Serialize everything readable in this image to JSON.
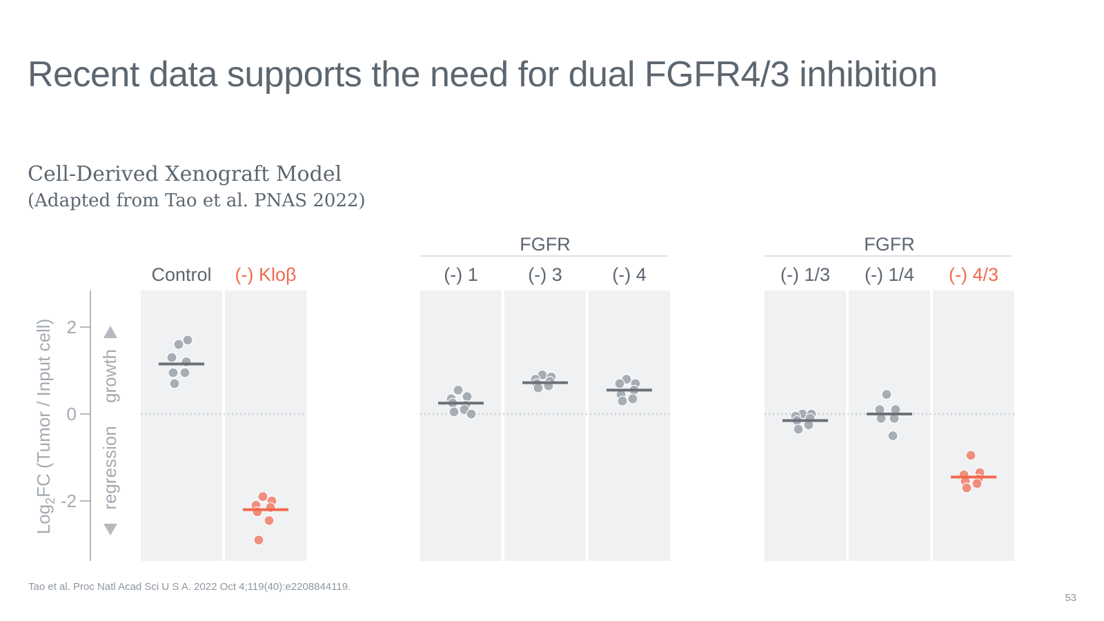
{
  "slide": {
    "title": "Recent data supports the need for dual FGFR4/3 inhibition",
    "subtitle_line1": "Cell-Derived Xenograft Model",
    "subtitle_line2": "(Adapted from Tao et al. PNAS 2022)",
    "footnote": "Tao et al. Proc Natl Acad Sci U S A. 2022 Oct 4;119(40):e2208844119.",
    "page_number": "53"
  },
  "chart_data": {
    "type": "scatter",
    "ylabel": "Log2FC (Tumor / Input cell)",
    "ylabel_parts": {
      "before_sub": "Log",
      "sub": "2",
      "after_sub": "FC (Tumor / Input cell)"
    },
    "direction_labels": {
      "up": "growth",
      "down": "regression"
    },
    "yticks": [
      2,
      0,
      -2
    ],
    "ytick_labels": [
      "2",
      "0",
      "-2"
    ],
    "ylim": [
      -3.3,
      2.9
    ],
    "reference_line_y": 0,
    "colors": {
      "gray_point": "#a3aab2",
      "gray_median": "#6b7178",
      "red_point": "#ef8a78",
      "red_median": "#f06a4e",
      "panel_bg": "#f0f1f2",
      "text_gray": "#5c6670",
      "text_red": "#f06a4e"
    },
    "groups": [
      {
        "header": "",
        "conditions": [
          {
            "label": "Control",
            "highlight": false,
            "median": 1.15,
            "values": [
              1.6,
              1.7,
              1.3,
              1.2,
              0.95,
              0.95,
              0.7
            ]
          },
          {
            "label": "(-) Kloβ",
            "highlight": true,
            "median": -2.2,
            "values": [
              -1.9,
              -2.0,
              -2.1,
              -2.15,
              -2.25,
              -2.45,
              -2.9
            ]
          }
        ]
      },
      {
        "header": "FGFR",
        "conditions": [
          {
            "label": "(-) 1",
            "highlight": false,
            "median": 0.25,
            "values": [
              0.55,
              0.4,
              0.35,
              0.2,
              0.25,
              0.1,
              0.05,
              0.0
            ]
          },
          {
            "label": "(-) 3",
            "highlight": false,
            "median": 0.72,
            "values": [
              0.9,
              0.85,
              0.8,
              0.75,
              0.7,
              0.65,
              0.6
            ]
          },
          {
            "label": "(-) 4",
            "highlight": false,
            "median": 0.55,
            "values": [
              0.8,
              0.7,
              0.7,
              0.55,
              0.45,
              0.35,
              0.3
            ]
          }
        ]
      },
      {
        "header": "FGFR",
        "conditions": [
          {
            "label": "(-) 1/3",
            "highlight": false,
            "median": -0.15,
            "values": [
              0.0,
              0.0,
              -0.05,
              -0.1,
              -0.15,
              -0.25,
              -0.35
            ]
          },
          {
            "label": "(-) 1/4",
            "highlight": false,
            "median": 0.0,
            "values": [
              0.45,
              0.1,
              0.1,
              -0.1,
              -0.1,
              -0.5
            ]
          },
          {
            "label": "(-) 4/3",
            "highlight": true,
            "median": -1.45,
            "values": [
              -0.95,
              -1.35,
              -1.4,
              -1.5,
              -1.55,
              -1.6,
              -1.7
            ]
          }
        ]
      }
    ]
  }
}
